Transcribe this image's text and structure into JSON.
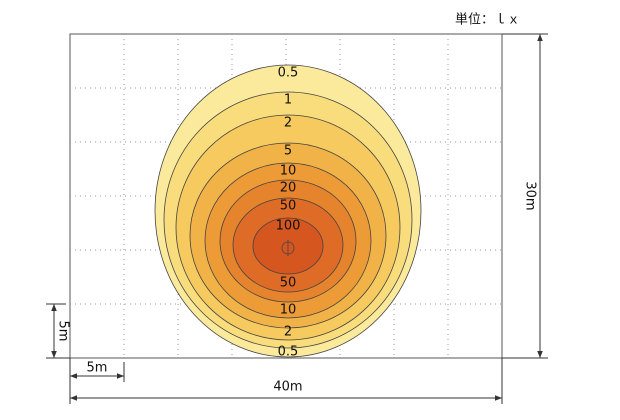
{
  "unit": "単位：ｌｘ",
  "contours": [
    {
      "label": "0.5"
    },
    {
      "label": "1"
    },
    {
      "label": "2"
    },
    {
      "label": "5"
    },
    {
      "label": "10"
    },
    {
      "label": "20"
    },
    {
      "label": "50"
    },
    {
      "label": "100"
    }
  ],
  "bottom_labels": [
    "50",
    "10",
    "2",
    "0.5"
  ],
  "dimensions": {
    "width": "40m",
    "height": "30m",
    "grid_x": "5m",
    "grid_y": "5m"
  }
}
